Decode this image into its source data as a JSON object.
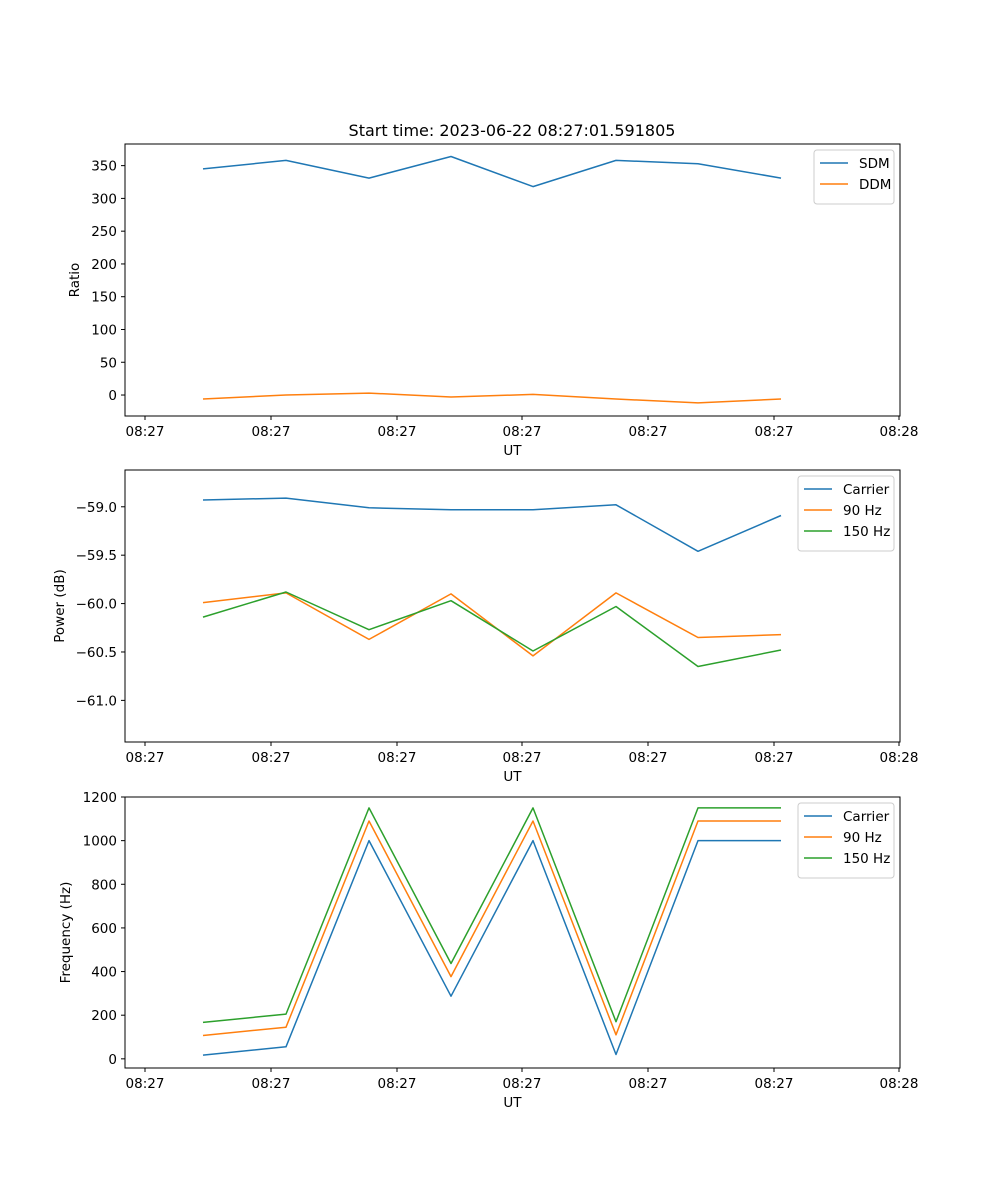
{
  "title": "Start time: 2023-06-22 08:27:01.591805",
  "chart_data": [
    {
      "type": "line",
      "ylabel": "Ratio",
      "xlabel": "UT",
      "x_ticks": [
        "08:27",
        "08:27",
        "08:27",
        "08:27",
        "08:27",
        "08:27",
        "08:28"
      ],
      "y_ticks": [
        "0",
        "50",
        "100",
        "150",
        "200",
        "250",
        "300",
        "350"
      ],
      "y_tick_values": [
        0,
        50,
        100,
        150,
        200,
        250,
        300,
        350
      ],
      "ylim": [
        -32,
        383
      ],
      "legend_position": "top-right",
      "grid": false,
      "series": [
        {
          "name": "SDM",
          "color": "#1f77b4",
          "values": [
            345,
            358,
            331,
            364,
            318,
            358,
            353,
            331
          ]
        },
        {
          "name": "DDM",
          "color": "#ff7f0e",
          "values": [
            -6,
            0,
            3,
            -3,
            1,
            -6,
            -12,
            -6
          ]
        }
      ]
    },
    {
      "type": "line",
      "ylabel": "Power (dB)",
      "xlabel": "UT",
      "x_ticks": [
        "08:27",
        "08:27",
        "08:27",
        "08:27",
        "08:27",
        "08:27",
        "08:28"
      ],
      "y_ticks": [
        "−61.0",
        "−60.5",
        "−60.0",
        "−59.5",
        "−59.0"
      ],
      "y_tick_values": [
        -61.0,
        -60.5,
        -60.0,
        -59.5,
        -59.0
      ],
      "ylim": [
        -61.43,
        -58.62
      ],
      "legend_position": "top-right",
      "grid": false,
      "series": [
        {
          "name": "Carrier",
          "color": "#1f77b4",
          "values": [
            -58.93,
            -58.91,
            -59.01,
            -59.03,
            -59.03,
            -58.98,
            -59.46,
            -59.09
          ]
        },
        {
          "name": "90 Hz",
          "color": "#ff7f0e",
          "values": [
            -59.99,
            -59.89,
            -60.37,
            -59.9,
            -60.54,
            -59.89,
            -60.35,
            -60.32
          ]
        },
        {
          "name": "150 Hz",
          "color": "#2ca02c",
          "values": [
            -60.14,
            -59.88,
            -60.27,
            -59.97,
            -60.49,
            -60.03,
            -60.65,
            -60.48
          ]
        }
      ]
    },
    {
      "type": "line",
      "ylabel": "Frequency (Hz)",
      "xlabel": "UT",
      "x_ticks": [
        "08:27",
        "08:27",
        "08:27",
        "08:27",
        "08:27",
        "08:27",
        "08:28"
      ],
      "y_ticks": [
        "0",
        "200",
        "400",
        "600",
        "800",
        "1000",
        "1200"
      ],
      "y_tick_values": [
        0,
        200,
        400,
        600,
        800,
        1000,
        1200
      ],
      "ylim": [
        -42,
        1200
      ],
      "legend_position": "top-right",
      "grid": false,
      "series": [
        {
          "name": "Carrier",
          "color": "#1f77b4",
          "values": [
            17,
            55,
            1000,
            287,
            1000,
            20,
            1000,
            1000
          ]
        },
        {
          "name": "90 Hz",
          "color": "#ff7f0e",
          "values": [
            107,
            145,
            1090,
            377,
            1090,
            110,
            1090,
            1090
          ]
        },
        {
          "name": "150 Hz",
          "color": "#2ca02c",
          "values": [
            167,
            205,
            1150,
            437,
            1150,
            170,
            1150,
            1150
          ]
        }
      ]
    }
  ]
}
